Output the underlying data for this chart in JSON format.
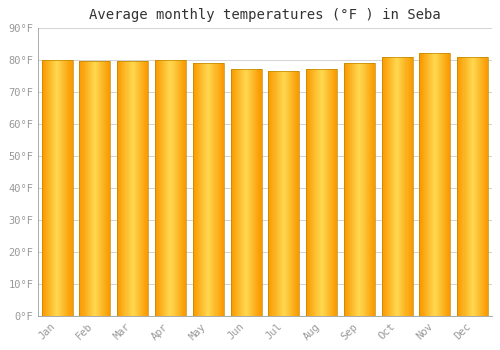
{
  "title": "Average monthly temperatures (°F ) in Seba",
  "months": [
    "Jan",
    "Feb",
    "Mar",
    "Apr",
    "May",
    "Jun",
    "Jul",
    "Aug",
    "Sep",
    "Oct",
    "Nov",
    "Dec"
  ],
  "values": [
    80.0,
    79.5,
    79.5,
    80.0,
    79.0,
    77.0,
    76.5,
    77.0,
    79.0,
    81.0,
    82.0,
    81.0
  ],
  "ylim": [
    0,
    90
  ],
  "yticks": [
    0,
    10,
    20,
    30,
    40,
    50,
    60,
    70,
    80,
    90
  ],
  "ytick_labels": [
    "0°F",
    "10°F",
    "20°F",
    "30°F",
    "40°F",
    "50°F",
    "60°F",
    "70°F",
    "80°F",
    "90°F"
  ],
  "background_color": "#FFFFFF",
  "plot_bg_color": "#FFFFFF",
  "grid_color": "#CCCCCC",
  "title_fontsize": 10,
  "bar_color_edge": "#CC8800",
  "bar_color_center": "#FFD060",
  "bar_color_main": "#FFA500",
  "tick_color": "#999999",
  "bar_width": 0.82,
  "title_color": "#333333"
}
